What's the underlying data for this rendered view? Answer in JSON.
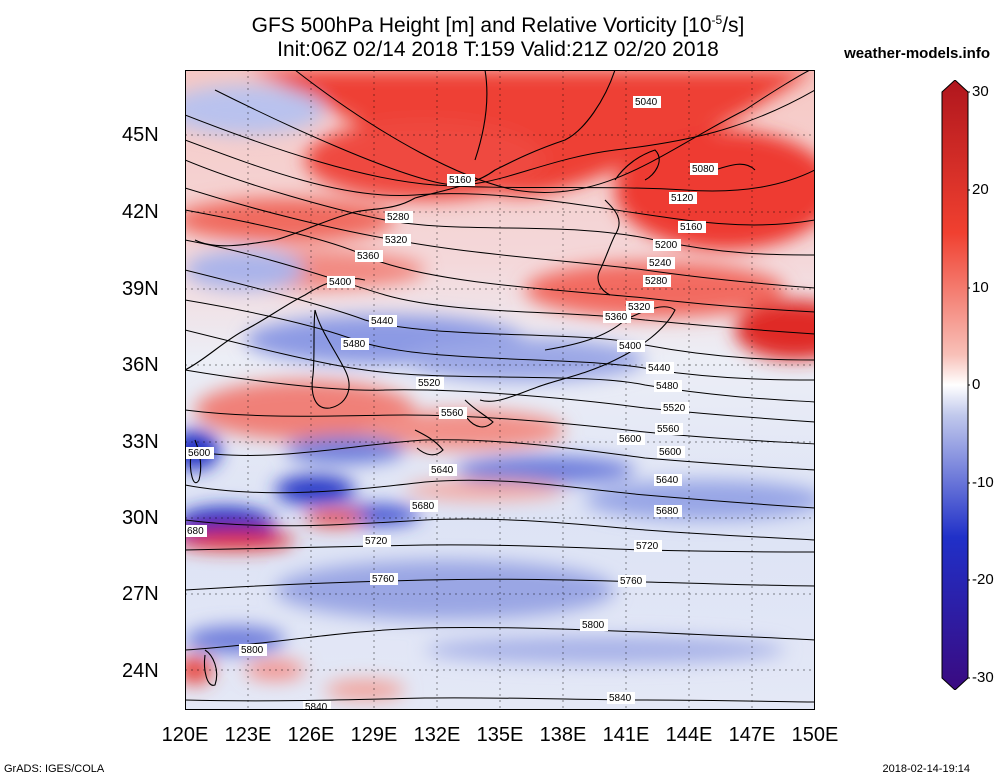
{
  "title": {
    "line1_pre": "GFS 500hPa Height [m] and Relative Vorticity [10",
    "line1_sup": "-5",
    "line1_post": "/s]",
    "line2": "Init:06Z 02/14 2018 T:159 Valid:21Z 02/20 2018"
  },
  "brand": "weather-models.info",
  "footer_left": "GrADS: IGES/COLA",
  "footer_right": "2018-02-14-19:14",
  "lat_labels": [
    "45N",
    "42N",
    "39N",
    "36N",
    "33N",
    "30N",
    "27N",
    "24N"
  ],
  "lon_labels": [
    "120E",
    "123E",
    "126E",
    "129E",
    "132E",
    "135E",
    "138E",
    "141E",
    "144E",
    "147E",
    "150E"
  ],
  "colorbar": {
    "labels": [
      "30",
      "20",
      "10",
      "0",
      "-10",
      "-20",
      "-30"
    ],
    "colors": {
      "max": "#b0161d",
      "pos": "#f04030",
      "light_pos": "#f8c0b8",
      "zero": "#ffffff",
      "light_neg": "#c0c8ec",
      "neg": "#2030c8",
      "min": "#3a0a80"
    }
  },
  "contour_labels": [
    "5040",
    "5080",
    "5120",
    "5160",
    "5160",
    "5200",
    "5240",
    "5280",
    "5280",
    "5320",
    "5320",
    "5360",
    "5360",
    "5400",
    "5400",
    "5440",
    "5440",
    "5480",
    "5480",
    "5520",
    "5520",
    "5560",
    "5560",
    "5600",
    "5600",
    "5600",
    "5640",
    "5640",
    "5680",
    "5680",
    "680",
    "5720",
    "5720",
    "5760",
    "5760",
    "5800",
    "5800",
    "5840",
    "5840"
  ]
}
